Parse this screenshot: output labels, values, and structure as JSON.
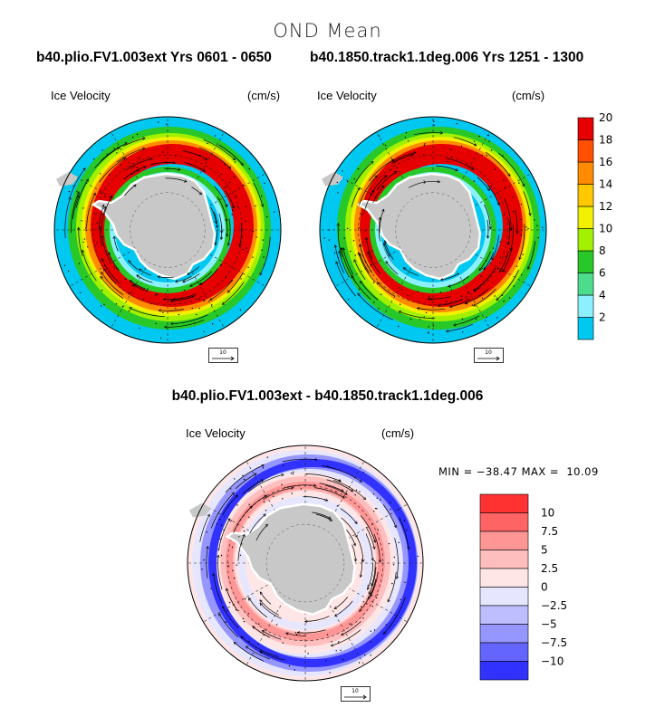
{
  "figure": {
    "title": "OND Mean",
    "left_run_title": "b40.plio.FV1.003ext  Yrs 0601 - 0650",
    "right_run_title": "b40.1850.track1.1deg.006  Yrs 1251 - 1300",
    "diff_title": "b40.plio.FV1.003ext - b40.1850.track1.1deg.006",
    "minmax_text": "MIN = −38.47 MAX =  10.09"
  },
  "panels": [
    {
      "id": "plio",
      "label": "Ice Velocity",
      "units": "(cm/s)",
      "ref_vector": "10"
    },
    {
      "id": "pi",
      "label": "Ice Velocity",
      "units": "(cm/s)",
      "ref_vector": "10"
    },
    {
      "id": "diff",
      "label": "Ice Velocity",
      "units": "(cm/s)",
      "ref_vector": "10"
    }
  ],
  "chart_data": [
    {
      "type": "heatmap",
      "projection": "south-polar-stereographic",
      "title": "b40.plio.FV1.003ext  Yrs 0601 - 0650",
      "variable": "Ice Velocity",
      "units": "cm/s",
      "overlay": "vectors",
      "reference_vector": 10
    },
    {
      "type": "heatmap",
      "projection": "south-polar-stereographic",
      "title": "b40.1850.track1.1deg.006  Yrs 1251 - 1300",
      "variable": "Ice Velocity",
      "units": "cm/s",
      "overlay": "vectors",
      "reference_vector": 10,
      "colorbar": {
        "ticks": [
          "2",
          "4",
          "6",
          "8",
          "10",
          "12",
          "14",
          "16",
          "18",
          "20"
        ],
        "colors": [
          "#00c8f0",
          "#8cf0ff",
          "#4cdc8c",
          "#28c828",
          "#a0f000",
          "#f0f000",
          "#ffc800",
          "#ff8c00",
          "#ff5000",
          "#e60000"
        ]
      }
    },
    {
      "type": "heatmap",
      "projection": "south-polar-stereographic",
      "title": "b40.plio.FV1.003ext - b40.1850.track1.1deg.006",
      "variable": "Ice Velocity",
      "units": "cm/s",
      "overlay": "vectors",
      "reference_vector": 10,
      "min": -38.47,
      "max": 10.09,
      "colorbar": {
        "ticks": [
          "10",
          "7.5",
          "5",
          "2.5",
          "0",
          "−2.5",
          "−5",
          "−7.5",
          "−10"
        ],
        "colors": [
          "#ff3232",
          "#ff6464",
          "#ff9696",
          "#ffbebe",
          "#ffe6e6",
          "#e6e6ff",
          "#bebeff",
          "#9696ff",
          "#6464ff",
          "#3232ff"
        ]
      }
    }
  ]
}
